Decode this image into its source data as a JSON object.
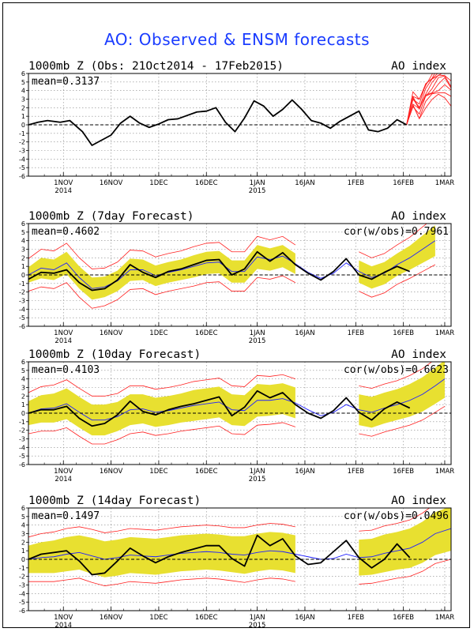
{
  "title": "AO: Observed & ENSM forecasts",
  "colors": {
    "observed": "#000000",
    "ensemble_members": "#ff2020",
    "ensemble_mean": "#2020ff",
    "spread_band": "#e8e030",
    "spread_envelope": "#ff2020",
    "title": "#1a3cff"
  },
  "chart_data": [
    {
      "type": "line",
      "title": "1000mb Z (Obs: 21Oct2014 - 17Feb2015)",
      "right_label": "AO index",
      "stat": "mean=0.3137",
      "xlim": [
        "2014-10-21",
        "2015-03-03"
      ],
      "ylim": [
        -6,
        6
      ],
      "y_ticks": [
        6,
        5,
        4,
        3,
        2,
        1,
        0,
        -1,
        -2,
        -3,
        -4,
        -5,
        -6
      ],
      "x_ticks": [
        {
          "date": "2014-11-01",
          "label": "1NOV",
          "sub": "2014"
        },
        {
          "date": "2014-11-16",
          "label": "16NOV",
          "sub": ""
        },
        {
          "date": "2014-12-01",
          "label": "1DEC",
          "sub": ""
        },
        {
          "date": "2014-12-16",
          "label": "16DEC",
          "sub": ""
        },
        {
          "date": "2015-01-01",
          "label": "1JAN",
          "sub": "2015"
        },
        {
          "date": "2015-01-16",
          "label": "16JAN",
          "sub": ""
        },
        {
          "date": "2015-02-01",
          "label": "1FEB",
          "sub": ""
        },
        {
          "date": "2015-02-16",
          "label": "16FEB",
          "sub": ""
        },
        {
          "date": "2015-03-01",
          "label": "1MAR",
          "sub": ""
        }
      ],
      "grid": true,
      "series": [
        {
          "role": "observed",
          "x": [
            "2014-10-21",
            "2014-10-24",
            "2014-10-27",
            "2014-10-31",
            "2014-11-03",
            "2014-11-07",
            "2014-11-10",
            "2014-11-13",
            "2014-11-16",
            "2014-11-19",
            "2014-11-22",
            "2014-11-25",
            "2014-11-28",
            "2014-12-01",
            "2014-12-04",
            "2014-12-07",
            "2014-12-10",
            "2014-12-13",
            "2014-12-16",
            "2014-12-19",
            "2014-12-22",
            "2014-12-25",
            "2014-12-28",
            "2014-12-31",
            "2015-01-03",
            "2015-01-06",
            "2015-01-09",
            "2015-01-12",
            "2015-01-15",
            "2015-01-18",
            "2015-01-21",
            "2015-01-24",
            "2015-01-27",
            "2015-01-30",
            "2015-02-02",
            "2015-02-05",
            "2015-02-08",
            "2015-02-11",
            "2015-02-14",
            "2015-02-17"
          ],
          "values": [
            0.0,
            0.3,
            0.5,
            0.3,
            0.5,
            -0.8,
            -2.4,
            -1.8,
            -1.2,
            0.2,
            1.0,
            0.2,
            -0.3,
            0.1,
            0.6,
            0.7,
            1.1,
            1.5,
            1.6,
            2.0,
            0.3,
            -0.8,
            0.8,
            2.8,
            2.2,
            1.0,
            1.8,
            2.9,
            1.8,
            0.5,
            0.2,
            -0.4,
            0.4,
            1.0,
            1.6,
            -0.6,
            -0.8,
            -0.4,
            0.6,
            0.0
          ]
        },
        {
          "role": "members",
          "x": [
            "2015-02-17",
            "2015-02-19",
            "2015-02-21",
            "2015-02-23",
            "2015-02-25",
            "2015-02-27",
            "2015-03-01",
            "2015-03-03"
          ],
          "values": [
            0.0,
            2.8,
            1.8,
            3.6,
            4.4,
            5.2,
            5.6,
            4.8
          ],
          "spread": [
            0.0,
            0.8,
            1.0,
            1.3,
            1.6,
            1.9,
            2.2,
            2.4
          ]
        }
      ]
    },
    {
      "type": "line",
      "title": "1000mb Z (7day Forecast)",
      "right_label": "AO index",
      "stat": "mean=0.4602",
      "stat_right": "cor(w/obs)=0.7961",
      "xlim": [
        "2014-10-21",
        "2015-03-03"
      ],
      "ylim": [
        -6,
        6
      ],
      "y_ticks": [
        6,
        5,
        4,
        3,
        2,
        1,
        0,
        -1,
        -2,
        -3,
        -4,
        -5,
        -6
      ],
      "x_ticks": [
        {
          "date": "2014-11-01",
          "label": "1NOV",
          "sub": "2014"
        },
        {
          "date": "2014-11-16",
          "label": "16NOV",
          "sub": ""
        },
        {
          "date": "2014-12-01",
          "label": "1DEC",
          "sub": ""
        },
        {
          "date": "2014-12-16",
          "label": "16DEC",
          "sub": ""
        },
        {
          "date": "2015-01-01",
          "label": "1JAN",
          "sub": "2015"
        },
        {
          "date": "2015-01-16",
          "label": "16JAN",
          "sub": ""
        },
        {
          "date": "2015-02-01",
          "label": "1FEB",
          "sub": ""
        },
        {
          "date": "2015-02-16",
          "label": "16FEB",
          "sub": ""
        },
        {
          "date": "2015-03-01",
          "label": "1MAR",
          "sub": ""
        }
      ],
      "grid": true,
      "band_gap": [
        "2015-01-16",
        "2015-02-01"
      ],
      "band_end": "2015-02-26",
      "series": [
        {
          "role": "observed",
          "x": [
            "2014-10-21",
            "2014-10-25",
            "2014-10-29",
            "2014-11-02",
            "2014-11-06",
            "2014-11-10",
            "2014-11-14",
            "2014-11-18",
            "2014-11-22",
            "2014-11-26",
            "2014-11-30",
            "2014-12-04",
            "2014-12-08",
            "2014-12-12",
            "2014-12-16",
            "2014-12-20",
            "2014-12-24",
            "2014-12-28",
            "2015-01-01",
            "2015-01-05",
            "2015-01-09",
            "2015-01-13",
            "2015-01-17",
            "2015-01-21",
            "2015-01-25",
            "2015-01-29",
            "2015-02-02",
            "2015-02-06",
            "2015-02-10",
            "2015-02-14",
            "2015-02-18"
          ],
          "values": [
            -0.5,
            0.3,
            0.2,
            0.6,
            -0.9,
            -1.8,
            -1.6,
            -0.6,
            1.2,
            0.3,
            -0.3,
            0.4,
            0.7,
            1.2,
            1.7,
            1.8,
            0.0,
            0.7,
            2.7,
            1.6,
            2.6,
            1.2,
            0.2,
            -0.6,
            0.4,
            1.9,
            0.0,
            -0.5,
            0.3,
            1.0,
            0.4
          ]
        },
        {
          "role": "ensemble_mean",
          "x": [
            "2014-10-21",
            "2014-10-25",
            "2014-10-29",
            "2014-11-02",
            "2014-11-06",
            "2014-11-10",
            "2014-11-14",
            "2014-11-18",
            "2014-11-22",
            "2014-11-26",
            "2014-11-30",
            "2014-12-04",
            "2014-12-08",
            "2014-12-12",
            "2014-12-16",
            "2014-12-20",
            "2014-12-24",
            "2014-12-28",
            "2015-01-01",
            "2015-01-05",
            "2015-01-09",
            "2015-01-13",
            "2015-01-17",
            "2015-01-21",
            "2015-01-25",
            "2015-01-29",
            "2015-02-02",
            "2015-02-06",
            "2015-02-10",
            "2015-02-14",
            "2015-02-18",
            "2015-02-22",
            "2015-02-26"
          ],
          "values": [
            0.0,
            0.8,
            0.6,
            1.4,
            -0.3,
            -1.6,
            -1.4,
            -0.7,
            0.6,
            0.6,
            -0.1,
            0.3,
            0.6,
            1.0,
            1.4,
            1.5,
            0.4,
            0.4,
            2.1,
            1.8,
            2.2,
            1.3,
            0.3,
            -0.4,
            0.2,
            1.4,
            0.4,
            -0.3,
            0.2,
            1.2,
            2.0,
            3.0,
            4.0
          ],
          "spread": [
            0.9,
            1.2,
            1.2,
            1.3,
            1.3,
            1.3,
            1.2,
            1.2,
            1.3,
            1.2,
            1.2,
            1.2,
            1.2,
            1.3,
            1.3,
            1.3,
            1.3,
            1.3,
            1.4,
            1.3,
            1.3,
            1.2,
            1.2,
            1.2,
            1.2,
            1.2,
            1.3,
            1.3,
            1.3,
            1.3,
            1.4,
            1.6,
            1.8
          ]
        }
      ]
    },
    {
      "type": "line",
      "title": "1000mb Z (10day Forecast)",
      "right_label": "AO index",
      "stat": "mean=0.4103",
      "stat_right": "cor(w/obs)=0.6623",
      "xlim": [
        "2014-10-21",
        "2015-03-03"
      ],
      "ylim": [
        -6,
        6
      ],
      "y_ticks": [
        6,
        5,
        4,
        3,
        2,
        1,
        0,
        -1,
        -2,
        -3,
        -4,
        -5,
        -6
      ],
      "x_ticks": [
        {
          "date": "2014-11-01",
          "label": "1NOV",
          "sub": "2014"
        },
        {
          "date": "2014-11-16",
          "label": "16NOV",
          "sub": ""
        },
        {
          "date": "2014-12-01",
          "label": "1DEC",
          "sub": ""
        },
        {
          "date": "2014-12-16",
          "label": "16DEC",
          "sub": ""
        },
        {
          "date": "2015-01-01",
          "label": "1JAN",
          "sub": "2015"
        },
        {
          "date": "2015-01-16",
          "label": "16JAN",
          "sub": ""
        },
        {
          "date": "2015-02-01",
          "label": "1FEB",
          "sub": ""
        },
        {
          "date": "2015-02-16",
          "label": "16FEB",
          "sub": ""
        },
        {
          "date": "2015-03-01",
          "label": "1MAR",
          "sub": ""
        }
      ],
      "grid": true,
      "band_gap": [
        "2015-01-16",
        "2015-02-01"
      ],
      "band_end": "2015-03-01",
      "series": [
        {
          "role": "observed",
          "x": [
            "2014-10-21",
            "2014-10-25",
            "2014-10-29",
            "2014-11-02",
            "2014-11-06",
            "2014-11-10",
            "2014-11-14",
            "2014-11-18",
            "2014-11-22",
            "2014-11-26",
            "2014-11-30",
            "2014-12-04",
            "2014-12-08",
            "2014-12-12",
            "2014-12-16",
            "2014-12-20",
            "2014-12-24",
            "2014-12-28",
            "2015-01-01",
            "2015-01-05",
            "2015-01-09",
            "2015-01-13",
            "2015-01-17",
            "2015-01-21",
            "2015-01-25",
            "2015-01-29",
            "2015-02-02",
            "2015-02-06",
            "2015-02-10",
            "2015-02-14",
            "2015-02-18"
          ],
          "values": [
            0.0,
            0.4,
            0.4,
            0.8,
            -0.6,
            -1.5,
            -1.2,
            -0.2,
            1.4,
            0.2,
            -0.2,
            0.4,
            0.8,
            1.1,
            1.5,
            1.9,
            -0.3,
            0.7,
            2.6,
            1.8,
            2.4,
            1.0,
            0.0,
            -0.6,
            0.3,
            1.8,
            0.1,
            -0.8,
            0.5,
            1.3,
            0.6
          ]
        },
        {
          "role": "ensemble_mean",
          "x": [
            "2014-10-21",
            "2014-10-25",
            "2014-10-29",
            "2014-11-02",
            "2014-11-06",
            "2014-11-10",
            "2014-11-14",
            "2014-11-18",
            "2014-11-22",
            "2014-11-26",
            "2014-11-30",
            "2014-12-04",
            "2014-12-08",
            "2014-12-12",
            "2014-12-16",
            "2014-12-20",
            "2014-12-24",
            "2014-12-28",
            "2015-01-01",
            "2015-01-05",
            "2015-01-09",
            "2015-01-13",
            "2015-01-17",
            "2015-01-21",
            "2015-01-25",
            "2015-01-29",
            "2015-02-02",
            "2015-02-06",
            "2015-02-10",
            "2015-02-14",
            "2015-02-18",
            "2015-02-22",
            "2015-02-26",
            "2015-03-01"
          ],
          "values": [
            0.0,
            0.5,
            0.6,
            1.1,
            0.1,
            -0.8,
            -0.8,
            -0.4,
            0.4,
            0.5,
            0.1,
            0.3,
            0.6,
            0.9,
            1.1,
            1.3,
            0.4,
            0.3,
            1.5,
            1.5,
            1.7,
            1.2,
            0.4,
            -0.3,
            0.1,
            1.0,
            0.4,
            0.1,
            0.6,
            1.0,
            1.5,
            2.2,
            3.2,
            4.0
          ],
          "spread": [
            1.4,
            1.6,
            1.7,
            1.8,
            1.8,
            1.8,
            1.8,
            1.7,
            1.8,
            1.7,
            1.7,
            1.7,
            1.7,
            1.8,
            1.8,
            1.8,
            1.8,
            1.8,
            1.9,
            1.8,
            1.8,
            1.8,
            1.7,
            1.7,
            1.7,
            1.7,
            1.8,
            1.8,
            1.8,
            1.8,
            1.9,
            2.0,
            2.1,
            2.2
          ]
        }
      ]
    },
    {
      "type": "line",
      "title": "1000mb Z (14day Forecast)",
      "right_label": "AO index",
      "stat": "mean=0.1497",
      "stat_right": "cor(w/obs)=0.0496",
      "xlim": [
        "2014-10-21",
        "2015-03-03"
      ],
      "ylim": [
        -6,
        6
      ],
      "y_ticks": [
        6,
        5,
        4,
        3,
        2,
        1,
        0,
        -1,
        -2,
        -3,
        -4,
        -5,
        -6
      ],
      "x_ticks": [
        {
          "date": "2014-11-01",
          "label": "1NOV",
          "sub": "2014"
        },
        {
          "date": "2014-11-16",
          "label": "16NOV",
          "sub": ""
        },
        {
          "date": "2014-12-01",
          "label": "1DEC",
          "sub": ""
        },
        {
          "date": "2014-12-16",
          "label": "16DEC",
          "sub": ""
        },
        {
          "date": "2015-01-01",
          "label": "1JAN",
          "sub": "2015"
        },
        {
          "date": "2015-01-16",
          "label": "16JAN",
          "sub": ""
        },
        {
          "date": "2015-02-01",
          "label": "1FEB",
          "sub": ""
        },
        {
          "date": "2015-02-16",
          "label": "16FEB",
          "sub": ""
        },
        {
          "date": "2015-03-01",
          "label": "1MAR",
          "sub": ""
        }
      ],
      "grid": true,
      "band_gap": [
        "2015-01-16",
        "2015-02-01"
      ],
      "band_end": "2015-03-03",
      "series": [
        {
          "role": "observed",
          "x": [
            "2014-10-21",
            "2014-10-25",
            "2014-10-29",
            "2014-11-02",
            "2014-11-06",
            "2014-11-10",
            "2014-11-14",
            "2014-11-18",
            "2014-11-22",
            "2014-11-26",
            "2014-11-30",
            "2014-12-04",
            "2014-12-08",
            "2014-12-12",
            "2014-12-16",
            "2014-12-20",
            "2014-12-24",
            "2014-12-28",
            "2015-01-01",
            "2015-01-05",
            "2015-01-09",
            "2015-01-13",
            "2015-01-17",
            "2015-01-21",
            "2015-01-25",
            "2015-01-29",
            "2015-02-02",
            "2015-02-06",
            "2015-02-10",
            "2015-02-14",
            "2015-02-18"
          ],
          "values": [
            0.0,
            0.6,
            0.8,
            1.0,
            -0.2,
            -1.8,
            -1.6,
            -0.2,
            1.3,
            0.4,
            -0.4,
            0.3,
            0.8,
            1.2,
            1.6,
            1.6,
            0.1,
            -0.8,
            2.8,
            1.6,
            2.4,
            0.4,
            -0.6,
            -0.4,
            0.9,
            2.2,
            0.2,
            -1.0,
            0.0,
            1.8,
            0.2
          ]
        },
        {
          "role": "ensemble_mean",
          "x": [
            "2014-10-21",
            "2014-10-25",
            "2014-10-29",
            "2014-11-02",
            "2014-11-06",
            "2014-11-10",
            "2014-11-14",
            "2014-11-18",
            "2014-11-22",
            "2014-11-26",
            "2014-11-30",
            "2014-12-04",
            "2014-12-08",
            "2014-12-12",
            "2014-12-16",
            "2014-12-20",
            "2014-12-24",
            "2014-12-28",
            "2015-01-01",
            "2015-01-05",
            "2015-01-09",
            "2015-01-13",
            "2015-01-17",
            "2015-01-21",
            "2015-01-25",
            "2015-01-29",
            "2015-02-02",
            "2015-02-06",
            "2015-02-10",
            "2015-02-14",
            "2015-02-18",
            "2015-02-22",
            "2015-02-26",
            "2015-03-03"
          ],
          "values": [
            0.0,
            0.2,
            0.3,
            0.6,
            0.8,
            0.4,
            0.0,
            0.2,
            0.5,
            0.4,
            0.3,
            0.5,
            0.7,
            0.8,
            0.9,
            0.8,
            0.6,
            0.5,
            0.8,
            1.0,
            0.9,
            0.6,
            0.3,
            0.0,
            0.1,
            0.6,
            0.2,
            0.3,
            0.7,
            1.0,
            1.3,
            2.0,
            3.0,
            3.6
          ],
          "spread": [
            1.6,
            1.8,
            1.9,
            2.0,
            2.0,
            2.1,
            2.1,
            2.1,
            2.1,
            2.1,
            2.1,
            2.1,
            2.1,
            2.1,
            2.1,
            2.1,
            2.1,
            2.2,
            2.2,
            2.2,
            2.2,
            2.2,
            2.1,
            2.1,
            2.1,
            2.1,
            2.1,
            2.1,
            2.2,
            2.2,
            2.3,
            2.4,
            2.5,
            2.6
          ]
        }
      ]
    }
  ]
}
